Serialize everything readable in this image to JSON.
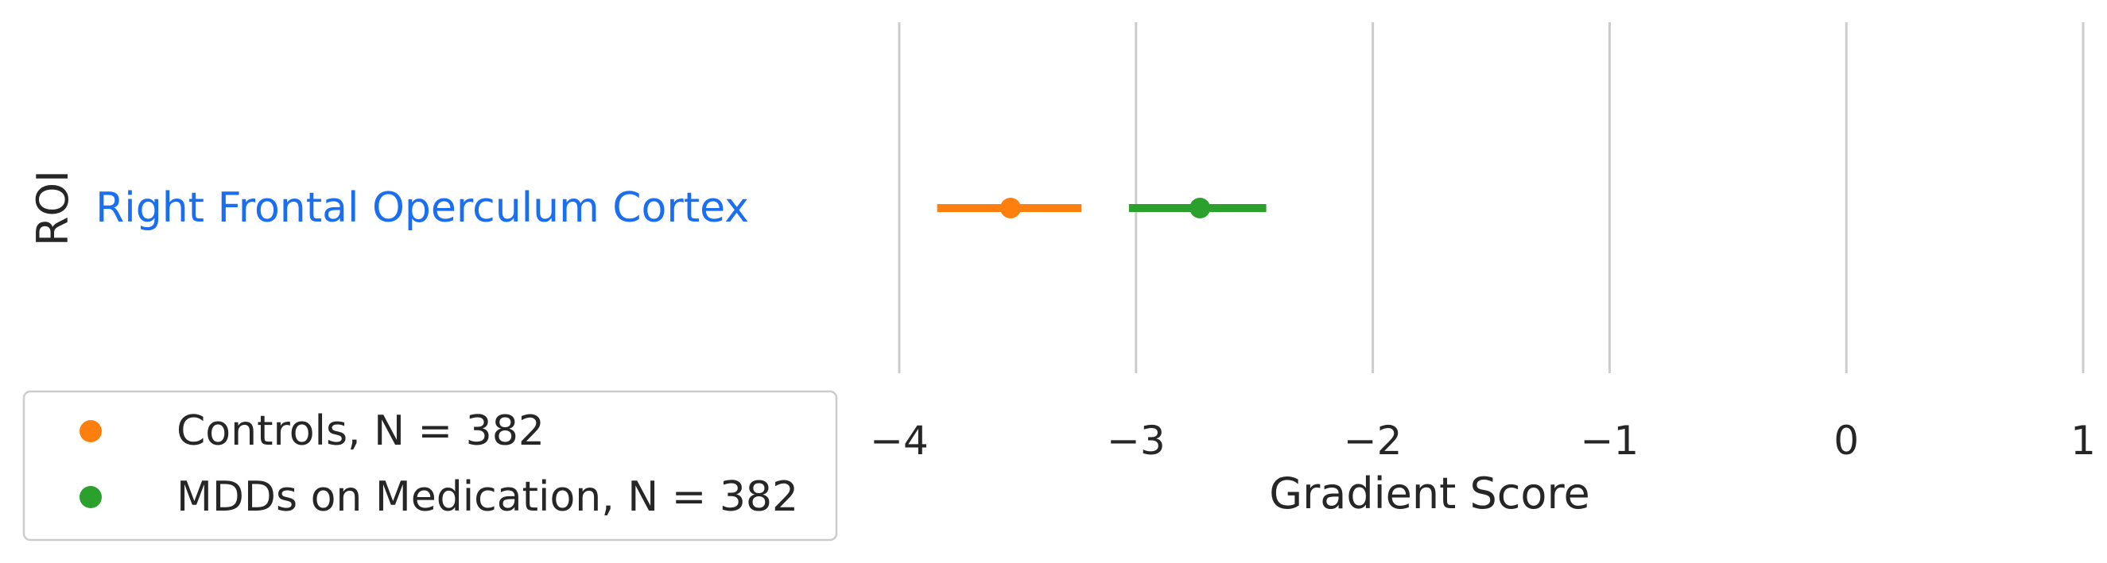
{
  "chart_data": {
    "type": "point-range",
    "xlabel": "Gradient Score",
    "ylabel": "ROI",
    "xlim": [
      -4,
      1
    ],
    "xticks": [
      -4,
      -3,
      -2,
      -1,
      0,
      1
    ],
    "xtick_labels": [
      "−4",
      "−3",
      "−2",
      "−1",
      "0",
      "1"
    ],
    "grid": "vertical",
    "categories": [
      "Right Frontal Operculum Cortex"
    ],
    "category_color": "#1a6ef2",
    "legend_position": "lower-left",
    "series": [
      {
        "name": "Controls, N = 382",
        "color": "#ff7f0e",
        "points": [
          {
            "category": "Right Frontal Operculum Cortex",
            "value": -3.53,
            "ci": [
              -3.84,
              -3.23
            ]
          }
        ]
      },
      {
        "name": "MDDs on Medication, N = 382",
        "color": "#2ca02c",
        "points": [
          {
            "category": "Right Frontal Operculum Cortex",
            "value": -2.73,
            "ci": [
              -3.03,
              -2.45
            ]
          }
        ]
      }
    ]
  }
}
